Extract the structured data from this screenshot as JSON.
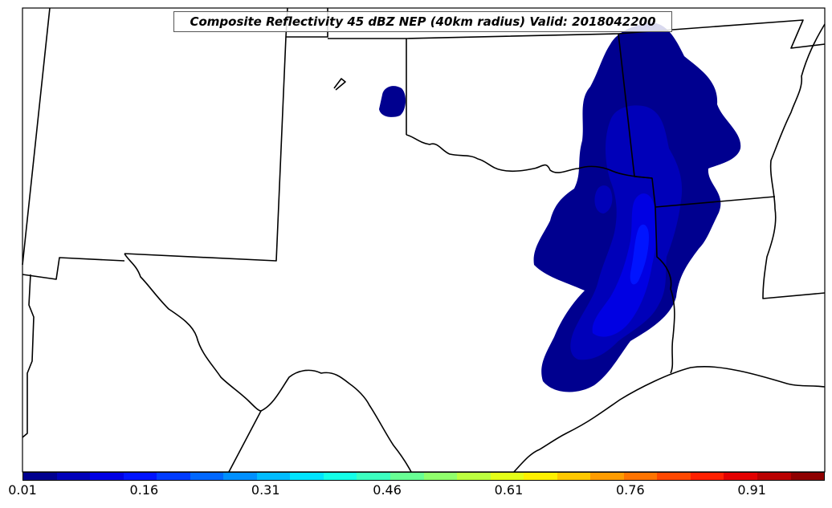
{
  "title": "Composite Reflectivity 45 dBZ NEP (40km radius) Valid: 2018042200",
  "colorbar": {
    "colors": [
      "#00008f",
      "#0000b9",
      "#0000e3",
      "#0014ff",
      "#003cff",
      "#0068ff",
      "#0090ff",
      "#00bcff",
      "#00e4ff",
      "#14ffe8",
      "#3cffc0",
      "#68ff94",
      "#90ff6c",
      "#bcff40",
      "#e4ff18",
      "#fff000",
      "#ffc800",
      "#ff9c00",
      "#ff7400",
      "#ff4800",
      "#ff2000",
      "#e30000",
      "#b90000",
      "#8f0000"
    ],
    "ticks": [
      "0.01",
      "0.16",
      "0.31",
      "0.46",
      "0.61",
      "0.76",
      "0.91"
    ],
    "min": 0.01,
    "max": 1.0
  }
}
